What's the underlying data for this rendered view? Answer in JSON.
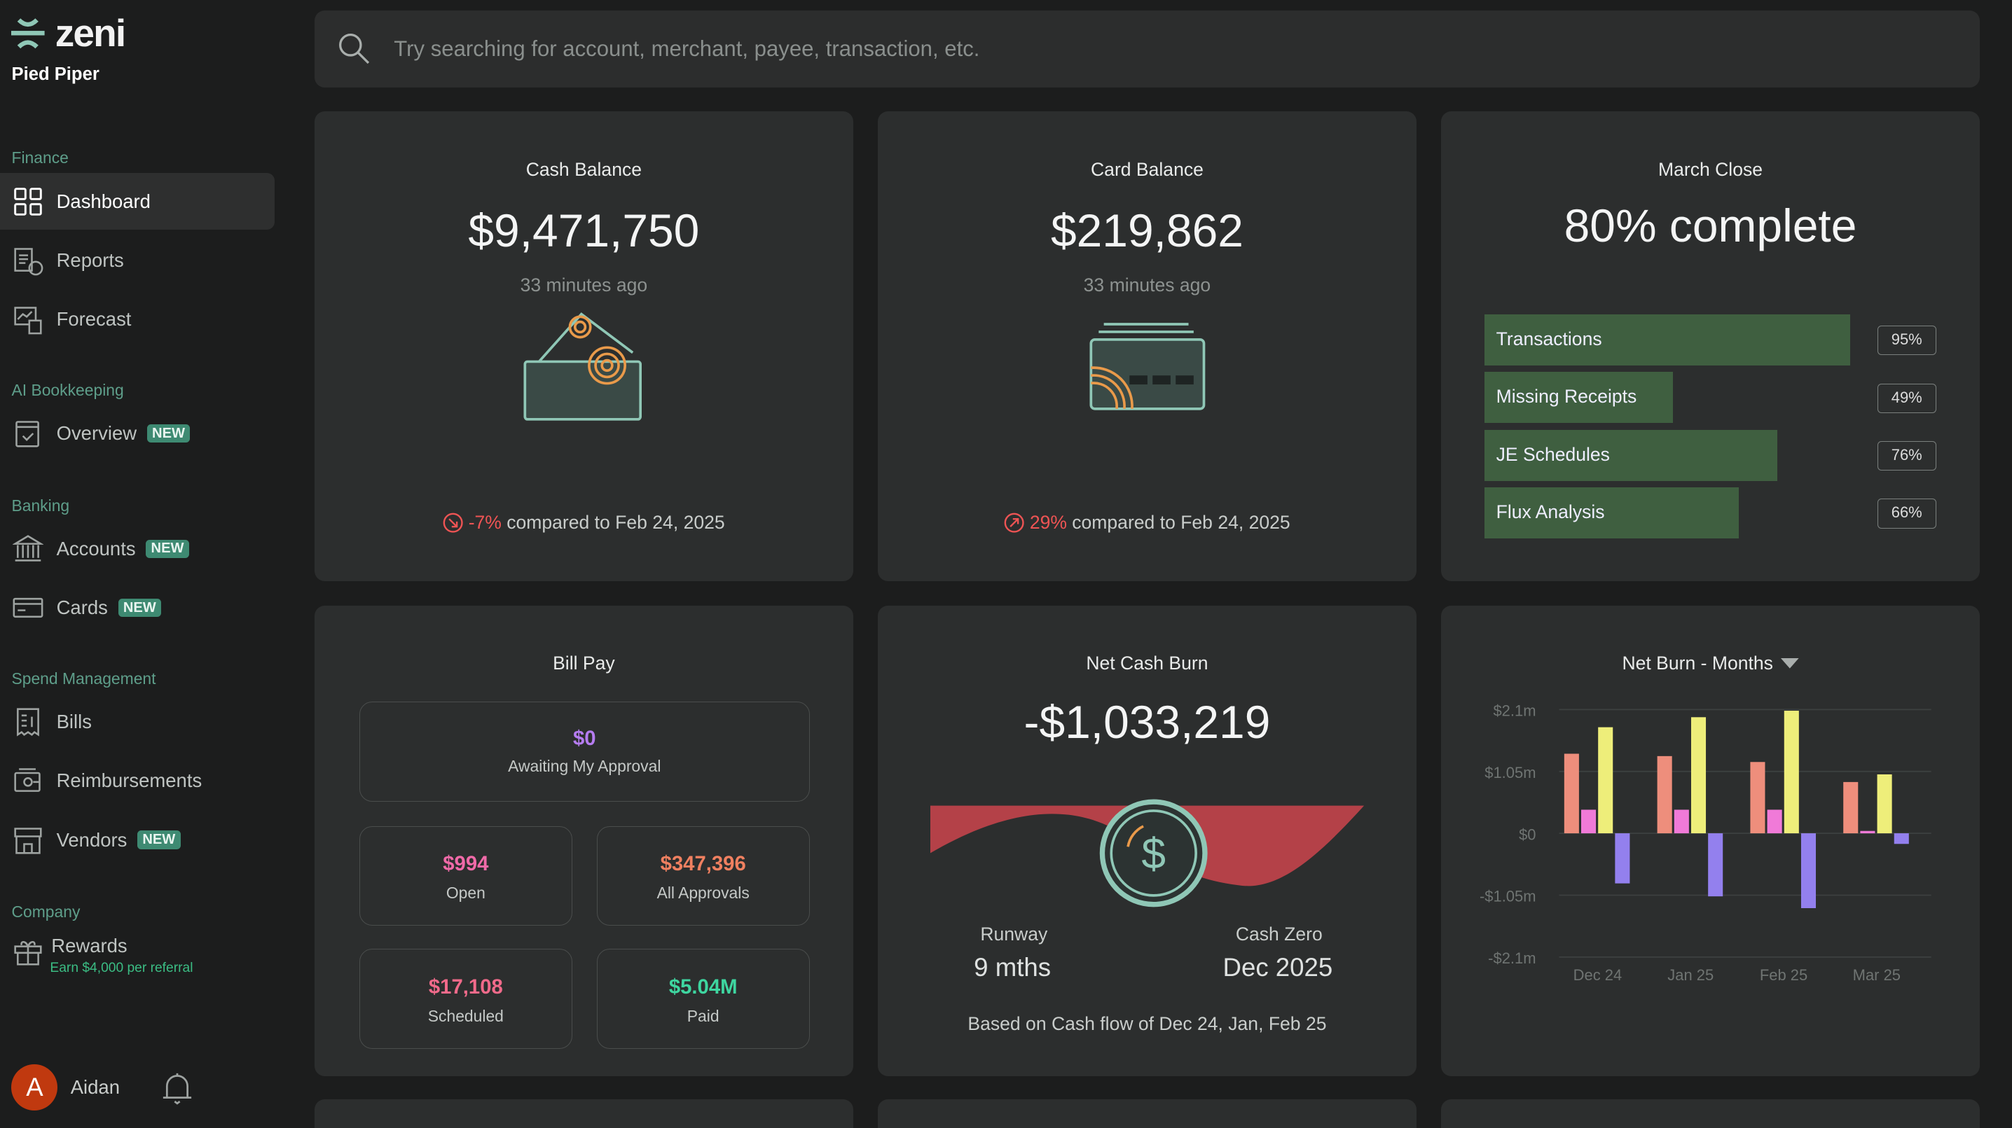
{
  "brand": {
    "logo_text": "zeni",
    "company": "Pied Piper"
  },
  "sidebar": {
    "sections": [
      "Finance",
      "AI Bookkeeping",
      "Banking",
      "Spend Management",
      "Company"
    ],
    "items": [
      {
        "label": "Dashboard"
      },
      {
        "label": "Reports"
      },
      {
        "label": "Forecast"
      },
      {
        "label": "Overview",
        "badge": "NEW"
      },
      {
        "label": "Accounts",
        "badge": "NEW"
      },
      {
        "label": "Cards",
        "badge": "NEW"
      },
      {
        "label": "Bills"
      },
      {
        "label": "Reimbursements"
      },
      {
        "label": "Vendors",
        "badge": "NEW"
      },
      {
        "label": "Rewards",
        "sub": "Earn $4,000 per referral"
      }
    ],
    "user": {
      "initial": "A",
      "name": "Aidan"
    }
  },
  "search": {
    "placeholder": "Try searching for account, merchant, payee, transaction, etc."
  },
  "cash_balance": {
    "title": "Cash Balance",
    "value": "$9,471,750",
    "updated": "33 minutes ago",
    "change": "-7%",
    "compare": "compared to Feb 24, 2025"
  },
  "card_balance": {
    "title": "Card Balance",
    "value": "$219,862",
    "updated": "33 minutes ago",
    "change": "29%",
    "compare": "compared to Feb 24, 2025"
  },
  "march_close": {
    "title": "March Close",
    "value": "80% complete",
    "items": [
      {
        "label": "Transactions",
        "pct": 95,
        "pct_label": "95%"
      },
      {
        "label": "Missing Receipts",
        "pct": 49,
        "pct_label": "49%"
      },
      {
        "label": "JE Schedules",
        "pct": 76,
        "pct_label": "76%"
      },
      {
        "label": "Flux Analysis",
        "pct": 66,
        "pct_label": "66%"
      }
    ]
  },
  "bill_pay": {
    "title": "Bill Pay",
    "awaiting": {
      "value": "$0",
      "label": "Awaiting My Approval",
      "color": "#b57cf0"
    },
    "open": {
      "value": "$994",
      "label": "Open",
      "color": "#f06aa8"
    },
    "all_approvals": {
      "value": "$347,396",
      "label": "All Approvals",
      "color": "#f08060"
    },
    "scheduled": {
      "value": "$17,108",
      "label": "Scheduled",
      "color": "#f06a8a"
    },
    "paid": {
      "value": "$5.04M",
      "label": "Paid",
      "color": "#3ed6a0"
    }
  },
  "net_cash_burn": {
    "title": "Net Cash Burn",
    "value": "-$1,033,219",
    "runway_label": "Runway",
    "runway": "9 mths",
    "cash_zero_label": "Cash Zero",
    "cash_zero": "Dec 2025",
    "note": "Based on Cash flow of Dec 24, Jan, Feb 25"
  },
  "chart_data": {
    "type": "bar",
    "title": "Net Burn - Months",
    "categories": [
      "Dec 24",
      "Jan 25",
      "Feb 25",
      "Mar 25"
    ],
    "yticks": [
      "$2.1m",
      "$1.05m",
      "$0",
      "-$1.05m",
      "-$2.1m"
    ],
    "ylim": [
      -2.1,
      2.1
    ],
    "units": "$m",
    "grid": true,
    "series": [
      {
        "name": "s1",
        "color": "#ee8e7c",
        "values": [
          1.35,
          1.31,
          1.21,
          0.87
        ]
      },
      {
        "name": "s2",
        "color": "#f07ad8",
        "values": [
          0.4,
          0.4,
          0.4,
          0.04
        ]
      },
      {
        "name": "s3",
        "color": "#eeee7a",
        "values": [
          1.8,
          1.97,
          2.08,
          1.0
        ]
      },
      {
        "name": "s4",
        "color": "#9380ee",
        "values": [
          -0.85,
          -1.07,
          -1.27,
          -0.18
        ]
      }
    ]
  }
}
